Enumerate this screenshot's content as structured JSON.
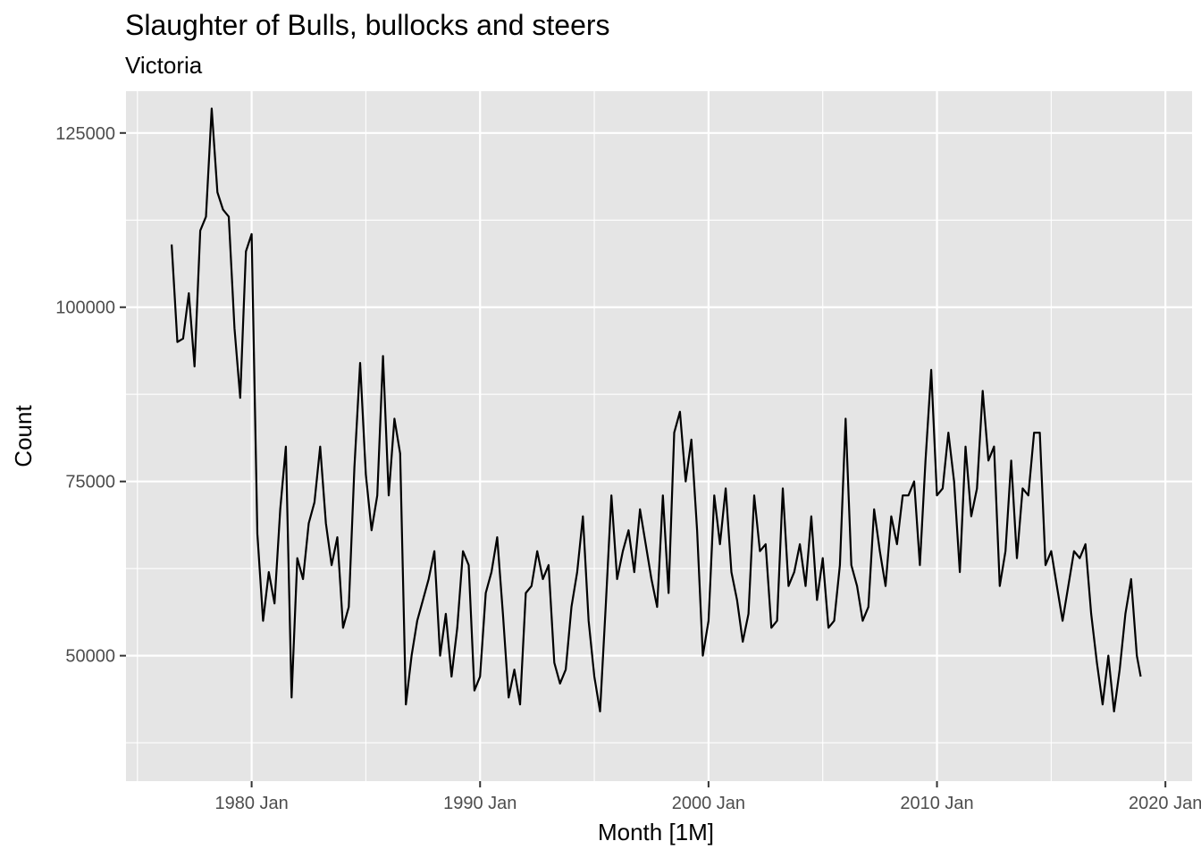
{
  "chart_data": {
    "type": "line",
    "title": "Slaughter of Bulls, bullocks and steers",
    "subtitle": "Victoria",
    "xlabel": "Month [1M]",
    "ylabel": "Count",
    "x_ticks": [
      "1980 Jan",
      "1990 Jan",
      "2000 Jan",
      "2010 Jan",
      "2020 Jan"
    ],
    "y_ticks": [
      "50000",
      "75000",
      "100000",
      "125000"
    ],
    "xlim": [
      "1974 Jul",
      "2021 Mar"
    ],
    "ylim": [
      32000,
      131000
    ],
    "grid": true,
    "legend": "none",
    "panel_color": "#e5e5e5",
    "grid_color": "#ffffff",
    "line_color": "#000000",
    "series": [
      {
        "x": [
          "1976 Jul",
          "1976 Oct",
          "1977 Jan",
          "1977 Apr",
          "1977 Jul",
          "1977 Oct",
          "1978 Jan",
          "1978 Apr",
          "1978 Jul",
          "1978 Oct",
          "1979 Jan",
          "1979 Apr",
          "1979 Jul",
          "1979 Oct",
          "1980 Jan",
          "1980 Apr",
          "1980 Jul",
          "1980 Oct",
          "1981 Jan",
          "1981 Apr",
          "1981 Jul",
          "1981 Oct",
          "1982 Jan",
          "1982 Apr",
          "1982 Jul",
          "1982 Oct",
          "1983 Jan",
          "1983 Apr",
          "1983 Jul",
          "1983 Oct",
          "1984 Jan",
          "1984 Apr",
          "1984 Jul",
          "1984 Oct",
          "1985 Jan",
          "1985 Apr",
          "1985 Jul",
          "1985 Oct",
          "1986 Jan",
          "1986 Apr",
          "1986 Jul",
          "1986 Oct",
          "1987 Jan",
          "1987 Apr",
          "1987 Jul",
          "1987 Oct",
          "1988 Jan",
          "1988 Apr",
          "1988 Jul",
          "1988 Oct",
          "1989 Jan",
          "1989 Apr",
          "1989 Jul",
          "1989 Oct",
          "1990 Jan",
          "1990 Apr",
          "1990 Jul",
          "1990 Oct",
          "1991 Jan",
          "1991 Apr",
          "1991 Jul",
          "1991 Oct",
          "1992 Jan",
          "1992 Apr",
          "1992 Jul",
          "1992 Oct",
          "1993 Jan",
          "1993 Apr",
          "1993 Jul",
          "1993 Oct",
          "1994 Jan",
          "1994 Apr",
          "1994 Jul",
          "1994 Oct",
          "1995 Jan",
          "1995 Apr",
          "1995 Jul",
          "1995 Oct",
          "1996 Jan",
          "1996 Apr",
          "1996 Jul",
          "1996 Oct",
          "1997 Jan",
          "1997 Apr",
          "1997 Jul",
          "1997 Oct",
          "1998 Jan",
          "1998 Apr",
          "1998 Jul",
          "1998 Oct",
          "1999 Jan",
          "1999 Apr",
          "1999 Jul",
          "1999 Oct",
          "2000 Jan",
          "2000 Apr",
          "2000 Jul",
          "2000 Oct",
          "2001 Jan",
          "2001 Apr",
          "2001 Jul",
          "2001 Oct",
          "2002 Jan",
          "2002 Apr",
          "2002 Jul",
          "2002 Oct",
          "2003 Jan",
          "2003 Apr",
          "2003 Jul",
          "2003 Oct",
          "2004 Jan",
          "2004 Apr",
          "2004 Jul",
          "2004 Oct",
          "2005 Jan",
          "2005 Apr",
          "2005 Jul",
          "2005 Oct",
          "2006 Jan",
          "2006 Apr",
          "2006 Jul",
          "2006 Oct",
          "2007 Jan",
          "2007 Apr",
          "2007 Jul",
          "2007 Oct",
          "2008 Jan",
          "2008 Apr",
          "2008 Jul",
          "2008 Oct",
          "2009 Jan",
          "2009 Apr",
          "2009 Jul",
          "2009 Oct",
          "2010 Jan",
          "2010 Apr",
          "2010 Jul",
          "2010 Oct",
          "2011 Jan",
          "2011 Apr",
          "2011 Jul",
          "2011 Oct",
          "2012 Jan",
          "2012 Apr",
          "2012 Jul",
          "2012 Oct",
          "2013 Jan",
          "2013 Apr",
          "2013 Jul",
          "2013 Oct",
          "2014 Jan",
          "2014 Apr",
          "2014 Jul",
          "2014 Oct",
          "2015 Jan",
          "2015 Apr",
          "2015 Jul",
          "2015 Oct",
          "2016 Jan",
          "2016 Apr",
          "2016 Jul",
          "2016 Oct",
          "2017 Jan",
          "2017 Apr",
          "2017 Jul",
          "2017 Oct",
          "2018 Jan",
          "2018 Apr",
          "2018 Jul",
          "2018 Oct",
          "2018 Dec"
        ],
        "y": [
          109000,
          95000,
          95500,
          102000,
          91500,
          111000,
          113000,
          128500,
          116500,
          114000,
          113000,
          97000,
          87000,
          108000,
          110500,
          67500,
          55000,
          62000,
          57500,
          71000,
          80000,
          44000,
          64000,
          61000,
          69000,
          72000,
          80000,
          69000,
          63000,
          67000,
          54000,
          57000,
          77000,
          92000,
          76000,
          68000,
          73000,
          93000,
          73000,
          84000,
          79000,
          43000,
          50000,
          55000,
          58000,
          61000,
          65000,
          50000,
          56000,
          47000,
          54000,
          65000,
          63000,
          45000,
          47000,
          59000,
          62000,
          67000,
          56000,
          44000,
          48000,
          43000,
          59000,
          60000,
          65000,
          61000,
          63000,
          49000,
          46000,
          48000,
          57000,
          62000,
          70000,
          55000,
          47000,
          42000,
          57000,
          73000,
          61000,
          65000,
          68000,
          62000,
          71000,
          66000,
          61000,
          57000,
          73000,
          59000,
          82000,
          85000,
          75000,
          81000,
          68000,
          50000,
          55000,
          73000,
          66000,
          74000,
          62000,
          58000,
          52000,
          56000,
          73000,
          65000,
          66000,
          54000,
          55000,
          74000,
          60000,
          62000,
          66000,
          60000,
          70000,
          58000,
          64000,
          54000,
          55000,
          63000,
          84000,
          63000,
          60000,
          55000,
          57000,
          71000,
          65000,
          60000,
          70000,
          66000,
          73000,
          73000,
          75000,
          63000,
          78000,
          91000,
          73000,
          74000,
          82000,
          75000,
          62000,
          80000,
          70000,
          74000,
          88000,
          78000,
          80000,
          60000,
          65000,
          78000,
          64000,
          74000,
          73000,
          82000,
          82000,
          63000,
          65000,
          60000,
          55000,
          60000,
          65000,
          64000,
          66000,
          56000,
          49000,
          43000,
          50000,
          42000,
          48000,
          56000,
          61000,
          50000,
          47000
        ]
      }
    ]
  }
}
